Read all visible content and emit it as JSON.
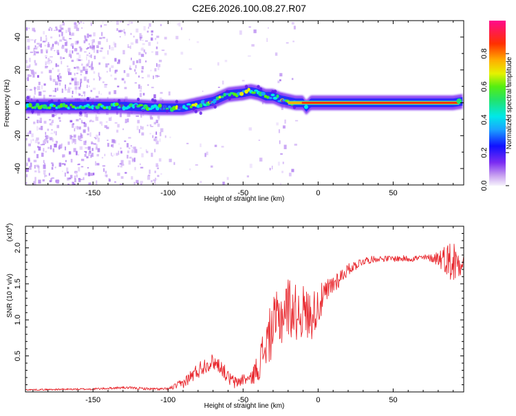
{
  "title": "C2E6.2026.100.08.27.R07",
  "chart_data": [
    {
      "type": "heatmap",
      "name": "spectrogram",
      "xlabel": "Height of straight line (km)",
      "ylabel": "Frequency (Hz)",
      "xlim": [
        -195,
        97
      ],
      "ylim": [
        -50,
        50
      ],
      "xticks": [
        -150,
        -100,
        -50,
        0,
        50
      ],
      "xtick_labels": [
        "-150",
        "-100",
        "-50",
        "0",
        "50"
      ],
      "yticks": [
        -40,
        -20,
        0,
        20,
        40
      ],
      "ytick_labels": [
        "-40",
        "-20",
        "0",
        "20",
        "40"
      ],
      "ridge": {
        "x": [
          -195,
          -175,
          -150,
          -130,
          -110,
          -100,
          -90,
          -80,
          -70,
          -60,
          -50,
          -45,
          -40,
          -35,
          -30,
          -25,
          -20,
          -15,
          -10,
          -8,
          -5,
          0,
          50,
          90,
          97
        ],
        "y": [
          -2,
          -2,
          -2,
          -2,
          -3,
          -3,
          -3,
          -1,
          1,
          5,
          6,
          7,
          6,
          4,
          4,
          2,
          1,
          0,
          0,
          -3,
          0,
          0,
          0,
          0,
          1
        ]
      },
      "colorbar": {
        "label": "Normalized spectral amplitude",
        "ticks": [
          "0.0",
          "0.2",
          "0.4",
          "0.6",
          "0.8"
        ],
        "tick_values": [
          0.0,
          0.2,
          0.4,
          0.6,
          0.8
        ],
        "range": [
          0,
          1
        ]
      }
    },
    {
      "type": "line",
      "name": "snr",
      "xlabel": "Height of straight line (km)",
      "ylabel": "SNR (10 * v/v)",
      "exponent_label": "(x10",
      "exponent_power": "4",
      "exponent_close": ")",
      "xlim": [
        -195,
        97
      ],
      "ylim": [
        0,
        2.3
      ],
      "xticks": [
        -150,
        -100,
        -50,
        0,
        50
      ],
      "xtick_labels": [
        "-150",
        "-100",
        "-50",
        "0",
        "50"
      ],
      "yticks": [
        0.5,
        1.0,
        1.5,
        2.0
      ],
      "ytick_labels": [
        "0.5",
        "1.0",
        "1.5",
        "2.0"
      ],
      "color": "#e8252b",
      "envelope": {
        "x": [
          -195,
          -150,
          -130,
          -110,
          -100,
          -90,
          -80,
          -75,
          -70,
          -65,
          -60,
          -55,
          -50,
          -45,
          -40,
          -35,
          -30,
          -25,
          -20,
          -15,
          -10,
          -5,
          0,
          5,
          10,
          20,
          30,
          40,
          50,
          60,
          70,
          80,
          85,
          90,
          95,
          97
        ],
        "y": [
          0.03,
          0.04,
          0.06,
          0.04,
          0.04,
          0.12,
          0.3,
          0.38,
          0.42,
          0.36,
          0.2,
          0.12,
          0.18,
          0.18,
          0.35,
          0.65,
          0.9,
          1.05,
          1.2,
          1.1,
          1.12,
          1.05,
          1.2,
          1.35,
          1.5,
          1.7,
          1.82,
          1.85,
          1.85,
          1.85,
          1.86,
          1.86,
          1.85,
          1.8,
          1.8,
          1.85
        ]
      },
      "noise": {
        "x": [
          -195,
          -100,
          -80,
          -60,
          -45,
          -35,
          -25,
          -15,
          -5,
          5,
          20,
          40,
          75,
          85,
          90,
          97
        ],
        "amp": [
          0.01,
          0.02,
          0.12,
          0.1,
          0.08,
          0.35,
          0.45,
          0.4,
          0.35,
          0.2,
          0.08,
          0.04,
          0.05,
          0.2,
          0.35,
          0.1
        ]
      }
    }
  ]
}
